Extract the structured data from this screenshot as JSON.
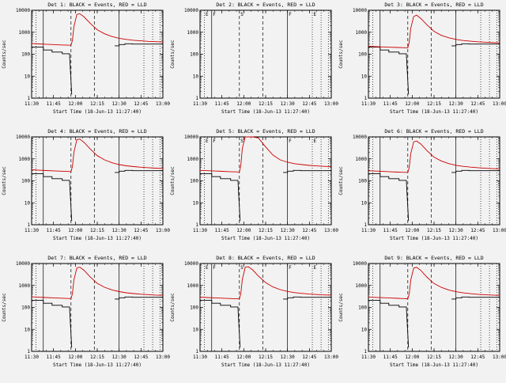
{
  "figure": {
    "description": "3x3 grid of detector count-rate time plots"
  },
  "chart_data": {
    "type": "line",
    "layout": {
      "rows": 3,
      "cols": 3
    },
    "xlabel": "Start Time (18-Jun-13 11:27:40)",
    "ylabel": "Counts/sec",
    "xlim_minutes": [
      0,
      90
    ],
    "ylim": [
      1,
      10000
    ],
    "y_scale": "log",
    "grid": false,
    "legend": {
      "black": "Events",
      "red": "LLD"
    },
    "colors": {
      "events": "#000000",
      "lld": "#cc0000"
    },
    "x_ticks": [
      {
        "pos": 0,
        "label": "11:30"
      },
      {
        "pos": 15,
        "label": "11:45"
      },
      {
        "pos": 30,
        "label": "12:00"
      },
      {
        "pos": 45,
        "label": "12:15"
      },
      {
        "pos": 60,
        "label": "12:30"
      },
      {
        "pos": 75,
        "label": "12:45"
      },
      {
        "pos": 90,
        "label": "13:00"
      }
    ],
    "y_ticks": [
      {
        "value": 1,
        "label": "1"
      },
      {
        "value": 10,
        "label": "10"
      },
      {
        "value": 100,
        "label": "100"
      },
      {
        "value": 1000,
        "label": "1000"
      },
      {
        "value": 10000,
        "label": "10000"
      }
    ],
    "markers": [
      {
        "x": 3,
        "style": "dotted",
        "label": "E"
      },
      {
        "x": 8,
        "style": "solid",
        "label": "F"
      },
      {
        "x": 27,
        "style": "dashed",
        "label": "S"
      },
      {
        "x": 43,
        "style": "dashed",
        "label": ""
      },
      {
        "x": 60,
        "style": "solid",
        "label": "F"
      },
      {
        "x": 77,
        "style": "dotted",
        "label": "E"
      },
      {
        "x": 83,
        "style": "dotted",
        "label": ""
      },
      {
        "x": 88,
        "style": "dotted",
        "label": ""
      }
    ],
    "red_x": [
      0,
      5,
      10,
      15,
      20,
      25,
      27,
      28,
      29,
      31,
      33,
      36,
      40,
      45,
      50,
      55,
      60,
      65,
      70,
      75,
      80,
      85,
      90
    ],
    "black_segments": [
      {
        "x": [
          0,
          8,
          8,
          14,
          14,
          21,
          21,
          26,
          26,
          27.5
        ],
        "y": [
          210,
          210,
          155,
          155,
          125,
          125,
          105,
          105,
          95,
          1.5
        ]
      },
      {
        "x": [
          57,
          60,
          60,
          64,
          64,
          69,
          69,
          90
        ],
        "y": [
          240,
          240,
          275,
          275,
          300,
          300,
          290,
          290
        ]
      }
    ],
    "plots": [
      {
        "det": "Det 1",
        "title": "Det 1: BLACK = Events, RED = LLD",
        "has_data": true,
        "show_letters": false,
        "red_y": [
          310,
          295,
          285,
          275,
          265,
          258,
          255,
          420,
          1800,
          6500,
          7000,
          5000,
          2600,
          1300,
          850,
          640,
          530,
          470,
          430,
          405,
          385,
          370,
          360
        ]
      },
      {
        "det": "Det 2",
        "title": "Det 2: BLACK = Events, RED = LLD",
        "has_data": false,
        "show_letters": true,
        "red_y": []
      },
      {
        "det": "Det 3",
        "title": "Det 3: BLACK = Events, RED = LLD",
        "has_data": true,
        "show_letters": false,
        "red_y": [
          230,
          220,
          214,
          208,
          202,
          198,
          196,
          350,
          1500,
          5200,
          6000,
          4200,
          2200,
          1100,
          720,
          560,
          470,
          420,
          390,
          368,
          352,
          340,
          330
        ]
      },
      {
        "det": "Det 4",
        "title": "Det 4: BLACK = Events, RED = LLD",
        "has_data": true,
        "show_letters": false,
        "red_y": [
          320,
          305,
          295,
          285,
          275,
          266,
          262,
          450,
          2000,
          7500,
          8000,
          5600,
          2900,
          1400,
          900,
          670,
          550,
          485,
          445,
          415,
          395,
          378,
          365
        ]
      },
      {
        "det": "Det 5",
        "title": "Det 5: BLACK = Events, RED = LLD",
        "has_data": true,
        "show_letters": true,
        "red_y": [
          300,
          290,
          280,
          270,
          262,
          255,
          252,
          500,
          3000,
          10000,
          10000,
          10000,
          9000,
          3500,
          1500,
          900,
          700,
          600,
          550,
          505,
          475,
          455,
          440
        ]
      },
      {
        "det": "Det 6",
        "title": "Det 6: BLACK = Events, RED = LLD",
        "has_data": true,
        "show_letters": false,
        "red_y": [
          290,
          278,
          268,
          258,
          250,
          243,
          240,
          400,
          1700,
          6000,
          6500,
          4700,
          2400,
          1200,
          800,
          610,
          510,
          455,
          420,
          395,
          375,
          360,
          350
        ]
      },
      {
        "det": "Det 7",
        "title": "Det 7: BLACK = Events, RED = LLD",
        "has_data": true,
        "show_letters": false,
        "red_y": [
          305,
          292,
          282,
          272,
          263,
          255,
          252,
          420,
          1800,
          6300,
          6800,
          4900,
          2500,
          1250,
          830,
          630,
          525,
          465,
          428,
          400,
          382,
          366,
          355
        ]
      },
      {
        "det": "Det 8",
        "title": "Det 8: BLACK = Events, RED = LLD",
        "has_data": true,
        "show_letters": true,
        "red_y": [
          295,
          283,
          273,
          263,
          255,
          248,
          245,
          430,
          1900,
          6800,
          7200,
          5200,
          2700,
          1350,
          860,
          645,
          535,
          472,
          433,
          405,
          386,
          370,
          358
        ]
      },
      {
        "det": "Det 9",
        "title": "Det 9: BLACK = Events, RED = LLD",
        "has_data": true,
        "show_letters": false,
        "red_y": [
          300,
          288,
          278,
          268,
          260,
          252,
          249,
          410,
          1750,
          6200,
          6700,
          4800,
          2450,
          1230,
          820,
          625,
          520,
          462,
          425,
          398,
          380,
          364,
          353
        ]
      }
    ]
  }
}
